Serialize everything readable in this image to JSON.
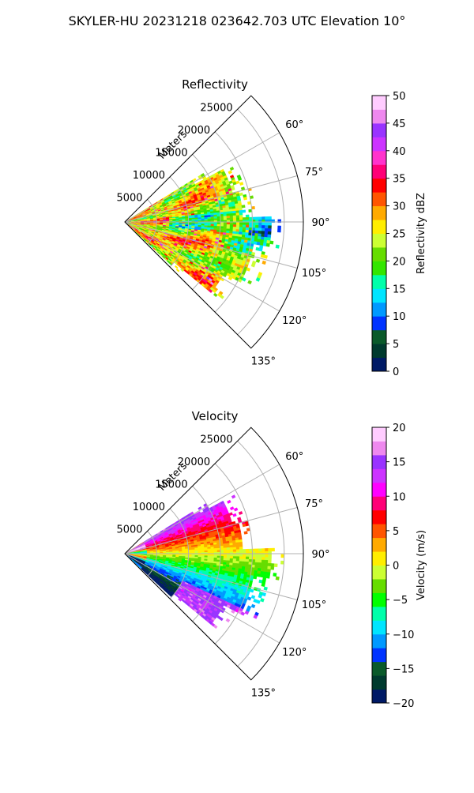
{
  "title": "SKYLER-HU  20231218  023642.703 UTC Elevation 10°",
  "chart_data": [
    {
      "type": "heatmap",
      "projection": "polar-sector",
      "title": "Reflectivity",
      "range_label": "Meters",
      "range_ticks": [
        "5000",
        "10000",
        "15000",
        "20000",
        "25000"
      ],
      "range_values": [
        5000,
        10000,
        15000,
        20000,
        25000
      ],
      "range_max": 28000,
      "azimuth_ticks": [
        "60°",
        "75°",
        "90°",
        "105°",
        "120°",
        "135°"
      ],
      "azimuth_values": [
        60,
        75,
        90,
        105,
        120,
        135
      ],
      "azimuth_range": [
        45,
        135
      ],
      "grid": true,
      "colorbar": {
        "label": "Reflectivity dBZ",
        "ticks": [
          "0",
          "5",
          "10",
          "15",
          "20",
          "25",
          "30",
          "35",
          "40",
          "45",
          "50"
        ],
        "range": [
          0,
          50
        ],
        "colors": [
          "#001a66",
          "#003a2e",
          "#0a5a2a",
          "#0033ff",
          "#0099ff",
          "#00e5ff",
          "#00ffaa",
          "#33e600",
          "#66dd00",
          "#ccff33",
          "#ffee00",
          "#ffaa00",
          "#ff5500",
          "#ff0000",
          "#ff0077",
          "#ff33cc",
          "#cc33ff",
          "#9933ff",
          "#ee88ee",
          "#ffccff"
        ]
      }
    },
    {
      "type": "heatmap",
      "projection": "polar-sector",
      "title": "Velocity",
      "range_label": "Meters",
      "range_ticks": [
        "5000",
        "10000",
        "15000",
        "20000",
        "25000"
      ],
      "range_values": [
        5000,
        10000,
        15000,
        20000,
        25000
      ],
      "range_max": 28000,
      "azimuth_ticks": [
        "60°",
        "75°",
        "90°",
        "105°",
        "120°",
        "135°"
      ],
      "azimuth_values": [
        60,
        75,
        90,
        105,
        120,
        135
      ],
      "azimuth_range": [
        45,
        135
      ],
      "grid": true,
      "colorbar": {
        "label": "Velocity (m/s)",
        "ticks": [
          "20",
          "15",
          "10",
          "5",
          "0",
          "−5",
          "−10",
          "−15",
          "−20"
        ],
        "range": [
          -20,
          20
        ],
        "colors": [
          "#001a66",
          "#003a2e",
          "#0a5a2a",
          "#0033ff",
          "#0099ff",
          "#00e5ff",
          "#00ffaa",
          "#00ff00",
          "#66dd00",
          "#ccff33",
          "#ffee00",
          "#ffaa00",
          "#ff5500",
          "#ff0000",
          "#ff0077",
          "#ff00ff",
          "#cc33ff",
          "#9933ff",
          "#ee88ee",
          "#ffccff"
        ]
      }
    }
  ]
}
